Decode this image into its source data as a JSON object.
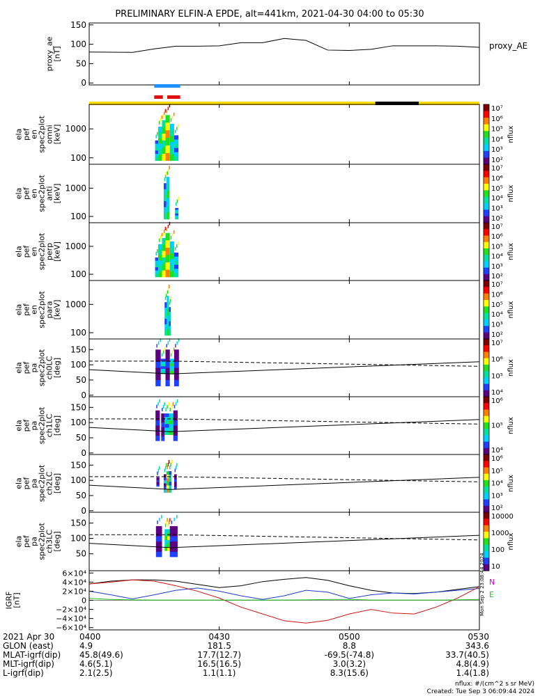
{
  "title": "PRELIMINARY ELFIN-A EPDE, alt=441km, 2021-04-30 04:00 to 05:30",
  "footer": {
    "units": "nflux: #/(cm^2 s sr MeV)",
    "created": "Created: Tue Sep  3 06:09:44 2024"
  },
  "side_stamp": "Mon Sep  2 23:08:44 2024",
  "colors": {
    "blue_bar": "#1e90ff",
    "red_bar": "#e01010",
    "yellow_bar": "#ffdd00",
    "black_bar": "#000000",
    "grf_x": "#000000",
    "grf_y": "#1a3ad0",
    "grf_z": "#d01010",
    "grf_total": "#20c020",
    "colorbar": [
      "#ffffff",
      "#5a0080",
      "#2040ff",
      "#00d0ff",
      "#00e0a0",
      "#20e020",
      "#ffff00",
      "#ff8000",
      "#ff0000",
      "#800000"
    ]
  },
  "chart_data": [
    {
      "id": "proxy_ae",
      "type": "line",
      "ylabel": "proxy_ae\n[nT]",
      "legend": "proxy_AE",
      "ylim": [
        -5,
        155
      ],
      "yticks": [
        "0",
        "50",
        "100",
        "150"
      ],
      "x": [
        0,
        10,
        15,
        20,
        25,
        30,
        35,
        40,
        45,
        47,
        50,
        55,
        60,
        65,
        70,
        75,
        80,
        85,
        90
      ],
      "values": [
        80,
        79,
        88,
        95,
        95,
        96,
        104,
        104,
        115,
        113,
        110,
        85,
        84,
        87,
        96,
        96,
        96,
        95,
        92
      ]
    },
    {
      "id": "orbit_bars",
      "type": "bar",
      "blue": [
        15,
        21
      ],
      "red": [
        [
          15,
          17
        ],
        [
          18,
          21
        ]
      ],
      "yellow": [
        0,
        90
      ],
      "black": [
        66,
        76
      ]
    },
    {
      "id": "omni",
      "type": "heatmap",
      "ylabel": "ela\npef\nen\nspec2plot\nomni\n[keV]",
      "ylim": [
        60,
        7000
      ],
      "yticks": [
        "100",
        "1000"
      ],
      "cbar_ticks": [
        "10²",
        "10³",
        "10⁴",
        "10⁵",
        "10⁶",
        "10⁷"
      ],
      "cbar_label": "nflux",
      "x_start": 15,
      "x_end": 21,
      "blocks": [
        [
          15.2,
          16.0,
          80,
          400,
          3
        ],
        [
          15.9,
          16.8,
          80,
          1200,
          4
        ],
        [
          16.8,
          17.6,
          80,
          2000,
          5
        ],
        [
          17.6,
          18.6,
          80,
          3000,
          6
        ],
        [
          18.6,
          19.6,
          80,
          1500,
          4
        ],
        [
          19.6,
          20.6,
          80,
          600,
          3
        ]
      ]
    },
    {
      "id": "anti",
      "type": "heatmap",
      "ylabel": "ela\npef\nen\nspec2plot\nanti\n[keV]",
      "ylim": [
        60,
        7000
      ],
      "yticks": [
        "100",
        "1000"
      ],
      "cbar_ticks": [
        "10²",
        "10³",
        "10⁴",
        "10⁵",
        "10⁶",
        "10⁷"
      ],
      "cbar_label": "nflux",
      "x_start": 15,
      "x_end": 21,
      "blocks": [
        [
          17.2,
          17.8,
          80,
          1500,
          3
        ],
        [
          17.8,
          18.5,
          80,
          2500,
          4
        ],
        [
          19.8,
          20.6,
          80,
          200,
          3
        ]
      ]
    },
    {
      "id": "perp",
      "type": "heatmap",
      "ylabel": "ela\npef\nen\nspec2plot\nperp\n[keV]",
      "ylim": [
        60,
        7000
      ],
      "yticks": [
        "100",
        "1000"
      ],
      "cbar_ticks": [
        "10²",
        "10³",
        "10⁴",
        "10⁵",
        "10⁶",
        "10⁷"
      ],
      "cbar_label": "nflux",
      "x_start": 15,
      "x_end": 21,
      "blocks": [
        [
          15.2,
          16.0,
          80,
          400,
          3
        ],
        [
          15.9,
          16.8,
          80,
          1200,
          4
        ],
        [
          16.8,
          17.6,
          80,
          2000,
          5
        ],
        [
          17.6,
          18.6,
          80,
          3000,
          6
        ],
        [
          18.6,
          19.6,
          80,
          1500,
          4
        ],
        [
          19.6,
          20.6,
          80,
          600,
          3
        ]
      ]
    },
    {
      "id": "para",
      "type": "heatmap",
      "ylabel": "ela\npef\nen\nspec2plot\npara\n[keV]",
      "ylim": [
        60,
        7000
      ],
      "yticks": [
        "100",
        "1000"
      ],
      "cbar_ticks": [
        "10²",
        "10³",
        "10⁴",
        "10⁵",
        "10⁶",
        "10⁷"
      ],
      "cbar_label": "nflux",
      "x_start": 15,
      "x_end": 21,
      "blocks": [
        [
          17.4,
          17.9,
          80,
          1200,
          3
        ],
        [
          17.9,
          18.4,
          80,
          2000,
          4
        ],
        [
          18.4,
          18.8,
          80,
          800,
          3
        ]
      ]
    },
    {
      "id": "ch0LC",
      "type": "heatmap",
      "ylabel": "ela\npef\npa\nspec2plot\nch0LC\n[deg]",
      "ylim": [
        -5,
        185
      ],
      "yticks": [
        "0",
        "50",
        "100",
        "150"
      ],
      "cbar_ticks": [
        "10⁴",
        "10⁵",
        "10⁶",
        "10⁷"
      ],
      "cbar_label": "nflux",
      "lc_solid": [
        [
          0,
          84
        ],
        [
          19,
          70
        ],
        [
          90,
          110
        ]
      ],
      "lc_dashed": [
        [
          0,
          112
        ],
        [
          19,
          112
        ],
        [
          90,
          95
        ]
      ],
      "blocks": [
        [
          15.3,
          16.5,
          30,
          150,
          1
        ],
        [
          16.5,
          17.6,
          70,
          120,
          3
        ],
        [
          17.6,
          18.6,
          30,
          150,
          1
        ],
        [
          18.6,
          19.6,
          70,
          120,
          4
        ],
        [
          19.6,
          20.7,
          30,
          150,
          1
        ]
      ]
    },
    {
      "id": "ch1LC",
      "type": "heatmap",
      "ylabel": "ela\npef\npa\nspec2plot\nch1LC\n[deg]",
      "ylim": [
        -5,
        185
      ],
      "yticks": [
        "0",
        "50",
        "100",
        "150"
      ],
      "cbar_ticks": [
        "10⁴",
        "10⁵",
        "10⁶"
      ],
      "cbar_label": "nflux",
      "lc_solid": [
        [
          0,
          84
        ],
        [
          19,
          70
        ],
        [
          90,
          110
        ]
      ],
      "lc_dashed": [
        [
          0,
          112
        ],
        [
          19,
          112
        ],
        [
          90,
          95
        ]
      ],
      "blocks": [
        [
          15.3,
          16.3,
          40,
          140,
          1
        ],
        [
          16.6,
          17.4,
          40,
          130,
          1
        ],
        [
          17.4,
          18.4,
          60,
          130,
          3
        ],
        [
          18.4,
          19.4,
          60,
          130,
          4
        ],
        [
          19.4,
          20.4,
          40,
          140,
          1
        ]
      ]
    },
    {
      "id": "ch2LC",
      "type": "heatmap",
      "ylabel": "ela\npef\npa\nspec2plot\nch2LC\n[deg]",
      "ylim": [
        -5,
        185
      ],
      "yticks": [
        "0",
        "50",
        "100",
        "150"
      ],
      "cbar_ticks": [
        "10²",
        "10³",
        "10⁴",
        "10⁵",
        "10⁶"
      ],
      "cbar_label": "nflux",
      "lc_solid": [
        [
          0,
          84
        ],
        [
          19,
          70
        ],
        [
          90,
          110
        ]
      ],
      "lc_dashed": [
        [
          0,
          112
        ],
        [
          19,
          112
        ],
        [
          90,
          95
        ]
      ],
      "blocks": [
        [
          15.5,
          16.2,
          80,
          110,
          1
        ],
        [
          17.2,
          17.8,
          60,
          120,
          2
        ],
        [
          17.8,
          18.4,
          60,
          130,
          6
        ],
        [
          18.4,
          19.0,
          60,
          130,
          3
        ],
        [
          19.6,
          20.2,
          70,
          120,
          1
        ]
      ]
    },
    {
      "id": "ch3LC",
      "type": "heatmap",
      "ylabel": "ela\npef\npa\nspec2plot\nch3LC\n[deg]",
      "ylim": [
        -5,
        185
      ],
      "yticks": [
        "50",
        "100",
        "150"
      ],
      "cbar_ticks": [
        "10",
        "100",
        "1000",
        "10000"
      ],
      "cbar_label": "nflux",
      "lc_solid": [
        [
          0,
          84
        ],
        [
          19,
          70
        ],
        [
          90,
          110
        ]
      ],
      "lc_dashed": [
        [
          0,
          112
        ],
        [
          19,
          112
        ],
        [
          90,
          95
        ]
      ],
      "blocks": [
        [
          15.4,
          16.8,
          40,
          140,
          1
        ],
        [
          17.4,
          18.0,
          60,
          130,
          4
        ],
        [
          18.0,
          18.6,
          60,
          130,
          5
        ],
        [
          18.6,
          20.4,
          40,
          140,
          1
        ]
      ]
    },
    {
      "id": "igrf",
      "type": "line",
      "ylabel": "IGRF\n[nT]",
      "ylim": [
        -65000,
        65000
      ],
      "yticks": [
        "6×10⁴",
        "4×10⁴",
        "2×10⁴",
        "0",
        "−2×10⁴",
        "−4×10⁴",
        "−6×10⁴"
      ],
      "ytick_values": [
        60000,
        40000,
        20000,
        0,
        -20000,
        -40000,
        -60000
      ],
      "legend": [
        "N",
        "E"
      ],
      "series": [
        {
          "color_key": "grf_x",
          "x": [
            0,
            5,
            10,
            15,
            20,
            25,
            30,
            35,
            40,
            45,
            50,
            55,
            60,
            65,
            70,
            75,
            80,
            85,
            90
          ],
          "values": [
            36000,
            42000,
            45000,
            45000,
            42000,
            35000,
            28000,
            32000,
            41000,
            46000,
            50000,
            44000,
            32000,
            22000,
            16000,
            15000,
            18000,
            24000,
            30000
          ]
        },
        {
          "color_key": "grf_y",
          "x": [
            0,
            5,
            10,
            15,
            20,
            25,
            30,
            35,
            40,
            45,
            50,
            55,
            60,
            65,
            70,
            75,
            80,
            85,
            90
          ],
          "values": [
            20000,
            12000,
            3000,
            12000,
            22000,
            27000,
            20000,
            10000,
            2000,
            10000,
            22000,
            18000,
            4000,
            12000,
            16000,
            14000,
            18000,
            22000,
            26000
          ]
        },
        {
          "color_key": "grf_z",
          "x": [
            0,
            5,
            10,
            15,
            20,
            25,
            30,
            35,
            40,
            45,
            50,
            55,
            60,
            65,
            70,
            75,
            80,
            85,
            90
          ],
          "values": [
            36000,
            40000,
            45000,
            42000,
            32000,
            20000,
            5000,
            -15000,
            -30000,
            -45000,
            -50000,
            -44000,
            -30000,
            -20000,
            -28000,
            -30000,
            -15000,
            5000,
            30000
          ]
        },
        {
          "color_key": "grf_total",
          "x": [
            0,
            5,
            10,
            15,
            20,
            25,
            30,
            35,
            40,
            45,
            50,
            55,
            60,
            65,
            70,
            75,
            80,
            85,
            90
          ],
          "values": [
            4000,
            2000,
            1000,
            500,
            500,
            500,
            500,
            500,
            500,
            500,
            1000,
            2000,
            2000,
            500,
            500,
            500,
            500,
            1000,
            2000
          ]
        }
      ]
    }
  ],
  "x_axis": {
    "x_ticks": [
      0,
      30,
      60,
      90
    ],
    "rows": [
      {
        "label": "2021 Apr 30",
        "values": [
          "0400",
          "0430",
          "0500",
          "0530"
        ]
      },
      {
        "label": "GLON (east)",
        "values": [
          "4.9",
          "181.5",
          "8.8",
          "343.6"
        ]
      },
      {
        "label": "MLAT-igrf(dip)",
        "values": [
          "45.8(49.6)",
          "17.7(12.7)",
          "-69.5(-74.8)",
          "33.7(40.5)"
        ]
      },
      {
        "label": "MLT-igrf(dip)",
        "values": [
          "4.6(5.1)",
          "16.5(16.5)",
          "3.0(3.2)",
          "4.8(4.9)"
        ]
      },
      {
        "label": "L-igrf(dip)",
        "values": [
          "2.1(2.5)",
          "1.1(1.1)",
          "8.3(15.6)",
          "1.4(1.8)"
        ]
      }
    ]
  }
}
